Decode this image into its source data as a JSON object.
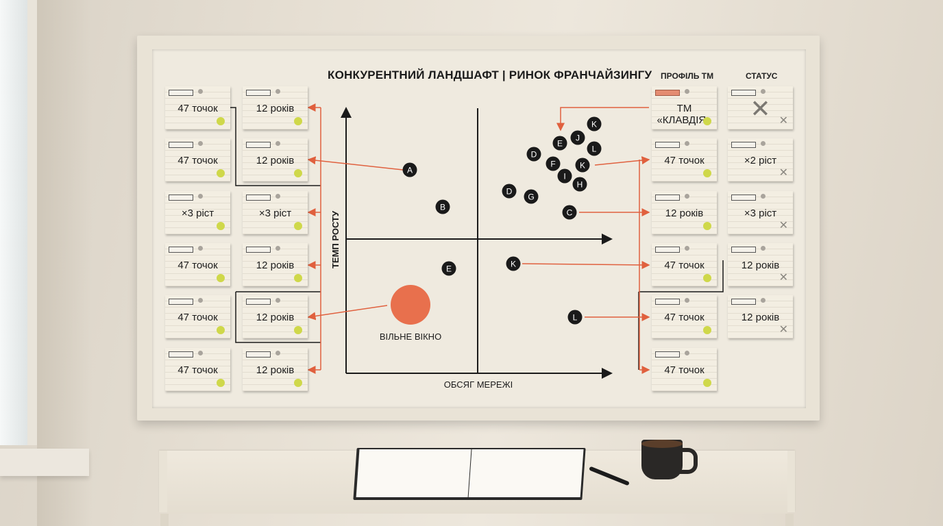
{
  "board": {
    "title": "КОНКУРЕНТНИЙ ЛАНДШАФТ | РИНОК ФРАНЧАЙЗИНГУ",
    "column_headers": {
      "profile": "ПРОФІЛЬ ТМ",
      "status": "СТАТУС"
    },
    "left_cards": [
      [
        "47 точок",
        "12 років"
      ],
      [
        "47 точок",
        "12 років"
      ],
      [
        "×3 ріст",
        "×3 ріст"
      ],
      [
        "47 точок",
        "12 років"
      ],
      [
        "47 точок",
        "12 років"
      ],
      [
        "47 точок",
        "12 років"
      ]
    ],
    "profile_cards": [
      "ТМ «КЛАВДІЯ»",
      "47 точок",
      "12 років",
      "47 точок",
      "47 точок",
      "47 точок"
    ],
    "status_cards": [
      "",
      "×2 ріст",
      "×3 ріст",
      "12 років",
      "12 років"
    ],
    "status_first_mark": "✕",
    "matrix": {
      "y_axis_label": "ТЕМП РОСТУ",
      "x_axis_label": "ОБСЯГ МЕРЕЖІ",
      "free_window_label": "ВІЛЬНЕ ВІКНО",
      "points": [
        "A",
        "B",
        "E",
        "K",
        "E",
        "J",
        "L",
        "D",
        "F",
        "K",
        "I",
        "H",
        "D",
        "G",
        "C",
        "K",
        "L"
      ]
    },
    "colors": {
      "accent": "#e0603e",
      "marker": "#1a1a1a",
      "free_window": "#e8704d",
      "card_dot": "#cfd84a"
    }
  }
}
